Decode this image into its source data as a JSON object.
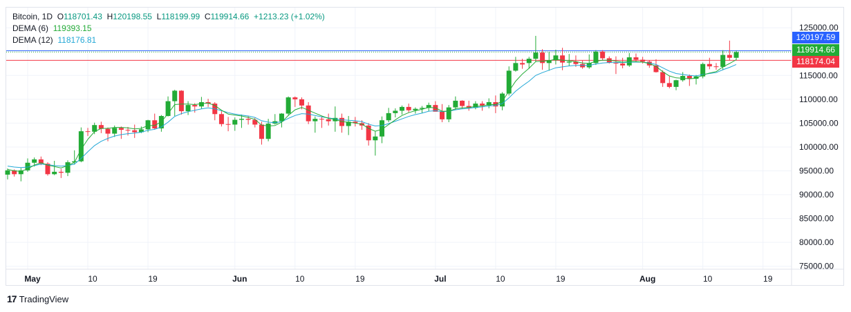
{
  "legend": {
    "symbol": "Bitcoin, 1D",
    "open_label": "O",
    "open": "118701.43",
    "high_label": "H",
    "high": "120198.55",
    "low_label": "L",
    "low": "118199.99",
    "close_label": "C",
    "close": "119914.66",
    "change": "+1213.23 (+1.02%)",
    "dema6_label": "DEMA (6)",
    "dema6_value": "119393.15",
    "dema12_label": "DEMA (12)",
    "dema12_value": "118176.81"
  },
  "price_tags": [
    {
      "text": "120197.59",
      "color": "#2962ff"
    },
    {
      "text": "119914.66",
      "color": "#22ab36"
    },
    {
      "text": "118174.04",
      "color": "#f23645"
    }
  ],
  "footer": {
    "brand": "TradingView",
    "logo": "17"
  },
  "colors": {
    "up": "#22ab36",
    "down": "#f23645",
    "dema6": "#22ab36",
    "dema12": "#22a7d6",
    "grid": "#f0f3fa"
  },
  "chart_data": {
    "type": "candlestick",
    "y_ticks": [
      "125000.00",
      "120000.00",
      "115000.00",
      "110000.00",
      "105000.00",
      "100000.00",
      "95000.00",
      "90000.00",
      "85000.00",
      "80000.00",
      "75000.00"
    ],
    "ylim": [
      73500,
      126500
    ],
    "x_ticks": [
      {
        "day": 0,
        "label": "May"
      },
      {
        "day": 9,
        "label": "10"
      },
      {
        "day": 18,
        "label": "19"
      },
      {
        "day": 31,
        "label": "Jun"
      },
      {
        "day": 40,
        "label": "10"
      },
      {
        "day": 49,
        "label": "19"
      },
      {
        "day": 61,
        "label": "Jul"
      },
      {
        "day": 70,
        "label": "10"
      },
      {
        "day": 79,
        "label": "19"
      },
      {
        "day": 92,
        "label": "Aug"
      },
      {
        "day": 101,
        "label": "10"
      },
      {
        "day": 110,
        "label": "19"
      }
    ],
    "first_day_offset": -3,
    "candles": [
      [
        94200,
        95500,
        93200,
        95100
      ],
      [
        95100,
        95300,
        93800,
        94300
      ],
      [
        94300,
        95600,
        92800,
        95100
      ],
      [
        95100,
        97600,
        94800,
        96700
      ],
      [
        96700,
        97800,
        95900,
        97400
      ],
      [
        97400,
        98000,
        96200,
        96500
      ],
      [
        96500,
        96800,
        94000,
        94300
      ],
      [
        94300,
        97100,
        94100,
        94800
      ],
      [
        94800,
        95400,
        93500,
        94600
      ],
      [
        94600,
        97200,
        93900,
        96800
      ],
      [
        96800,
        99300,
        96300,
        97000
      ],
      [
        97000,
        104100,
        96800,
        103300
      ],
      [
        103300,
        104000,
        102300,
        103200
      ],
      [
        103200,
        105100,
        102700,
        104600
      ],
      [
        104600,
        105300,
        102900,
        103800
      ],
      [
        103800,
        104100,
        101200,
        102800
      ],
      [
        102800,
        104500,
        102100,
        104000
      ],
      [
        104000,
        104300,
        101700,
        103600
      ],
      [
        103600,
        104200,
        102400,
        103500
      ],
      [
        103500,
        104700,
        101900,
        103100
      ],
      [
        103100,
        104300,
        102900,
        103700
      ],
      [
        103700,
        105700,
        103100,
        105600
      ],
      [
        105600,
        107000,
        103700,
        103900
      ],
      [
        103900,
        106700,
        103200,
        106500
      ],
      [
        106500,
        110600,
        106400,
        109600
      ],
      [
        109600,
        112000,
        106500,
        111800
      ],
      [
        111800,
        111900,
        106800,
        107500
      ],
      [
        107500,
        109600,
        106700,
        108800
      ],
      [
        108800,
        109200,
        107200,
        108500
      ],
      [
        108500,
        110500,
        108000,
        109400
      ],
      [
        109400,
        110100,
        108400,
        109100
      ],
      [
        109100,
        109400,
        105600,
        106900
      ],
      [
        106900,
        107500,
        104300,
        104800
      ],
      [
        104800,
        106300,
        103300,
        104700
      ],
      [
        104700,
        106200,
        103400,
        105700
      ],
      [
        105700,
        106800,
        104000,
        105900
      ],
      [
        105900,
        106500,
        104700,
        105700
      ],
      [
        105700,
        106100,
        104100,
        104700
      ],
      [
        104700,
        105300,
        100500,
        101700
      ],
      [
        101700,
        105900,
        101200,
        104900
      ],
      [
        104900,
        106900,
        104700,
        105400
      ],
      [
        105400,
        107100,
        104100,
        107000
      ],
      [
        107000,
        110600,
        106600,
        110400
      ],
      [
        110400,
        110600,
        108400,
        110000
      ],
      [
        110000,
        110400,
        107900,
        108700
      ],
      [
        108700,
        109400,
        104800,
        105400
      ],
      [
        105400,
        106400,
        103000,
        105900
      ],
      [
        105900,
        106400,
        104000,
        105800
      ],
      [
        105800,
        107000,
        104500,
        105400
      ],
      [
        105400,
        108500,
        103200,
        106100
      ],
      [
        106100,
        107000,
        103000,
        104400
      ],
      [
        104400,
        106500,
        102500,
        105300
      ],
      [
        105300,
        106300,
        104300,
        105000
      ],
      [
        105000,
        105600,
        103600,
        104500
      ],
      [
        104500,
        105000,
        100300,
        101400
      ],
      [
        101400,
        103300,
        98200,
        102200
      ],
      [
        102200,
        106400,
        100800,
        105600
      ],
      [
        105600,
        108200,
        105200,
        107100
      ],
      [
        107100,
        108100,
        106200,
        107600
      ],
      [
        107600,
        108700,
        106800,
        108400
      ],
      [
        108400,
        109100,
        107300,
        107700
      ],
      [
        107700,
        108300,
        107000,
        108000
      ],
      [
        108000,
        108600,
        107100,
        108200
      ],
      [
        108200,
        109300,
        107500,
        108800
      ],
      [
        108800,
        109600,
        107900,
        107400
      ],
      [
        107400,
        109000,
        105200,
        105800
      ],
      [
        105800,
        108800,
        105200,
        108300
      ],
      [
        108300,
        110600,
        107800,
        109700
      ],
      [
        109700,
        109800,
        108000,
        108600
      ],
      [
        108600,
        109700,
        107600,
        108200
      ],
      [
        108200,
        109600,
        107900,
        109100
      ],
      [
        109100,
        109600,
        107600,
        108700
      ],
      [
        108700,
        110200,
        108100,
        109400
      ],
      [
        109400,
        110800,
        107100,
        108500
      ],
      [
        108500,
        111500,
        107700,
        111200
      ],
      [
        111200,
        116900,
        110800,
        116000
      ],
      [
        116000,
        118900,
        115800,
        117600
      ],
      [
        117600,
        118500,
        116400,
        117300
      ],
      [
        117600,
        118900,
        116400,
        118500
      ],
      [
        118500,
        123300,
        117800,
        119800
      ],
      [
        119800,
        120500,
        116200,
        117600
      ],
      [
        117600,
        119900,
        116000,
        118200
      ],
      [
        118200,
        120400,
        117300,
        119200
      ],
      [
        119200,
        120800,
        116100,
        117700
      ],
      [
        117700,
        119500,
        117000,
        117900
      ],
      [
        117900,
        119200,
        116800,
        117400
      ],
      [
        117400,
        118100,
        116400,
        116700
      ],
      [
        116700,
        119400,
        116400,
        117600
      ],
      [
        117600,
        120300,
        117200,
        120000
      ],
      [
        120000,
        120300,
        118200,
        118600
      ],
      [
        118600,
        119000,
        117500,
        117700
      ],
      [
        117700,
        119000,
        115300,
        117500
      ],
      [
        117500,
        118700,
        116500,
        117100
      ],
      [
        117100,
        119700,
        116800,
        118800
      ],
      [
        118800,
        119600,
        117900,
        118300
      ],
      [
        118300,
        118900,
        117500,
        117900
      ],
      [
        117900,
        118200,
        116600,
        117100
      ],
      [
        117100,
        118400,
        115600,
        115700
      ],
      [
        115700,
        116100,
        112600,
        113400
      ],
      [
        113400,
        114800,
        112300,
        112600
      ],
      [
        112600,
        114100,
        111900,
        114000
      ],
      [
        114000,
        115700,
        113700,
        114900
      ],
      [
        114900,
        115200,
        112800,
        114300
      ],
      [
        114300,
        115100,
        113100,
        114800
      ],
      [
        114800,
        117700,
        114400,
        117400
      ],
      [
        117400,
        118700,
        116300,
        116900
      ],
      [
        116900,
        117600,
        116200,
        116800
      ],
      [
        116800,
        120300,
        116100,
        119300
      ],
      [
        119300,
        122300,
        118100,
        118700
      ],
      [
        118700,
        120200,
        118200,
        119900
      ]
    ],
    "dema6": [
      95300,
      95000,
      94900,
      95400,
      96200,
      96700,
      96200,
      95900,
      95600,
      96100,
      96800,
      99500,
      101600,
      103200,
      103900,
      103900,
      104100,
      104100,
      104000,
      103800,
      103900,
      104500,
      104500,
      105300,
      107000,
      108900,
      109000,
      109000,
      108900,
      109100,
      109200,
      108700,
      107700,
      106900,
      106700,
      106500,
      106200,
      105800,
      104600,
      104400,
      104500,
      105200,
      106600,
      107800,
      108300,
      107700,
      107100,
      106500,
      106000,
      105800,
      105300,
      105200,
      105000,
      104800,
      103900,
      103300,
      103700,
      104700,
      105700,
      106600,
      107200,
      107600,
      107900,
      108300,
      108200,
      107500,
      107500,
      108000,
      108200,
      108300,
      108500,
      108600,
      108900,
      108900,
      109600,
      111700,
      113800,
      115300,
      116500,
      117900,
      118000,
      118100,
      118400,
      118200,
      118100,
      117900,
      117600,
      117500,
      118000,
      118200,
      118200,
      118000,
      117800,
      117900,
      117900,
      117800,
      117500,
      116900,
      115800,
      114900,
      114500,
      114400,
      114300,
      114400,
      115100,
      115500,
      115800,
      116800,
      117500,
      118300
    ],
    "dema12": [
      96000,
      95800,
      95700,
      95800,
      96100,
      96400,
      96300,
      96100,
      96000,
      96100,
      96400,
      97600,
      99000,
      100300,
      101200,
      101800,
      102300,
      102600,
      102800,
      102900,
      103100,
      103500,
      103700,
      104200,
      105200,
      106400,
      107000,
      107400,
      107700,
      108000,
      108200,
      108000,
      107600,
      107200,
      106900,
      106700,
      106500,
      106200,
      105500,
      105200,
      105100,
      105300,
      106000,
      106600,
      107000,
      106900,
      106600,
      106300,
      106100,
      105900,
      105700,
      105600,
      105500,
      105300,
      104800,
      104400,
      104500,
      104900,
      105400,
      105900,
      106400,
      106800,
      107100,
      107500,
      107600,
      107400,
      107500,
      107800,
      108000,
      108100,
      108300,
      108400,
      108600,
      108700,
      109100,
      110300,
      111700,
      112800,
      113800,
      115000,
      115600,
      116100,
      116600,
      116800,
      117000,
      117100,
      117100,
      117100,
      117400,
      117600,
      117700,
      117700,
      117700,
      117800,
      117800,
      117800,
      117600,
      117300,
      116600,
      115900,
      115400,
      115200,
      115000,
      114900,
      115200,
      115400,
      115600,
      116200,
      116700,
      117300
    ],
    "hlines": [
      {
        "value": 120197.59,
        "color": "#2962ff",
        "dotted": false
      },
      {
        "value": 119914.66,
        "color": "#22ab36",
        "dotted": true
      },
      {
        "value": 118174.04,
        "color": "#f23645",
        "dotted": false
      }
    ]
  }
}
